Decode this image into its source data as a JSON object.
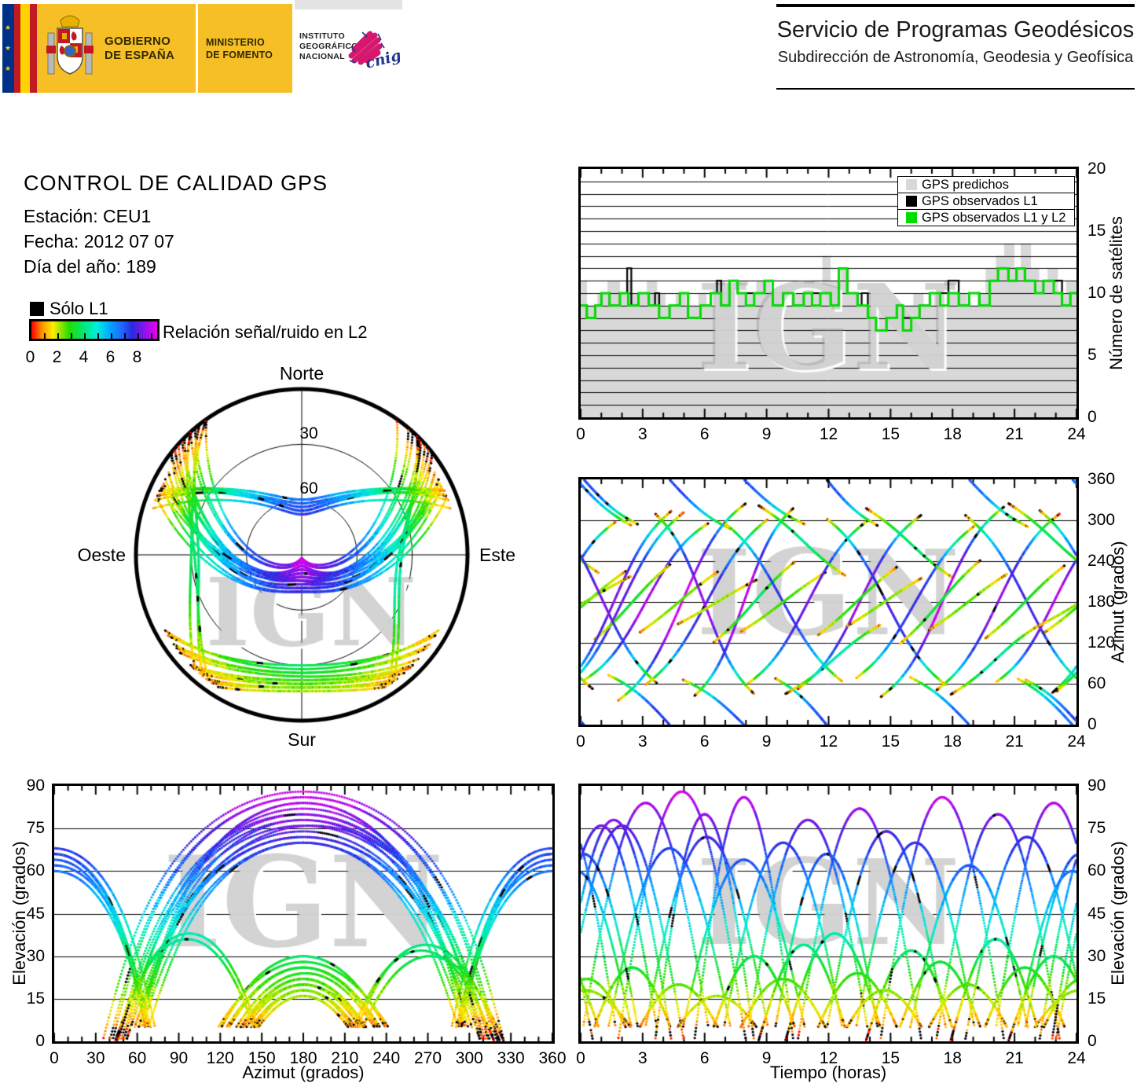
{
  "header": {
    "gobierno_line1": "GOBIERNO",
    "gobierno_line2": "DE ESPAÑA",
    "ministerio_line1": "MINISTERIO",
    "ministerio_line2": "DE FOMENTO",
    "instituto_line1": "INSTITUTO",
    "instituto_line2": "GEOGRÁFICO",
    "instituto_line3": "NACIONAL",
    "cnig_label": "cnig",
    "service_title": "Servicio de Programas Geodésicos",
    "service_subtitle": "Subdirección de Astronomía, Geodesia y Geofísica"
  },
  "info": {
    "title": "CONTROL DE CALIDAD GPS",
    "station": "Estación: CEU1",
    "date": "Fecha: 2012 07 07",
    "day_of_year": "Día del año: 189"
  },
  "snr_legend": {
    "solo_l1_label": "Sólo L1",
    "colorbar_label": "Relación señal/ruido en L2",
    "colorbar_ticks": [
      "0",
      "2",
      "4",
      "6",
      "8"
    ],
    "colorbar_tick_values": [
      0,
      2,
      4,
      6,
      8
    ],
    "colorbar_range": [
      0,
      9.3
    ]
  },
  "skyplot": {
    "north": "Norte",
    "south": "Sur",
    "east": "Este",
    "west": "Oeste",
    "ring_labels": [
      "30",
      "60"
    ],
    "ring_elevations": [
      30,
      60
    ]
  },
  "watermark": {
    "text": "IGN"
  },
  "chart_data": {
    "snr_colormap": {
      "range": [
        0,
        9.3
      ],
      "stops": [
        [
          0.0,
          "#ff0000"
        ],
        [
          0.08,
          "#ff8c00"
        ],
        [
          0.17,
          "#ffee00"
        ],
        [
          0.3,
          "#22dd00"
        ],
        [
          0.42,
          "#00e87a"
        ],
        [
          0.52,
          "#00eedd"
        ],
        [
          0.62,
          "#00aaff"
        ],
        [
          0.72,
          "#1f66ff"
        ],
        [
          0.8,
          "#2a2ae0"
        ],
        [
          0.88,
          "#7718e8"
        ],
        [
          1.0,
          "#ee00ee"
        ]
      ],
      "low_snr_flag_color": "#000000",
      "meaning": "señal/ruido L2; negro = sólo L1"
    },
    "satellites_per_hour": {
      "type": "area",
      "xlabel": "",
      "ylabel": "Número de satélites",
      "xlim": [
        0,
        24
      ],
      "ylim": [
        0,
        20
      ],
      "x_ticks": [
        0,
        3,
        6,
        9,
        12,
        15,
        18,
        21,
        24
      ],
      "y_ticks": [
        0,
        5,
        10,
        15,
        20
      ],
      "grid_step_y": 1,
      "minor_step_x": 1,
      "legend": [
        {
          "label": "GPS predichos",
          "color": "#d8d8d8"
        },
        {
          "label": "GPS observados L1",
          "color": "#000000"
        },
        {
          "label": "GPS observados L1 y L2",
          "color": "#00dd00"
        }
      ],
      "series": {
        "predichos_steps": [
          [
            0,
            11
          ],
          [
            0.3,
            9
          ],
          [
            0.8,
            10
          ],
          [
            1.3,
            11
          ],
          [
            1.9,
            10
          ],
          [
            2.2,
            11
          ],
          [
            2.5,
            10
          ],
          [
            3.2,
            11
          ],
          [
            3.7,
            10
          ],
          [
            4.1,
            9
          ],
          [
            4.6,
            10
          ],
          [
            5.1,
            9
          ],
          [
            5.7,
            10
          ],
          [
            6.1,
            9
          ],
          [
            6.5,
            11
          ],
          [
            7.0,
            10
          ],
          [
            7.5,
            11
          ],
          [
            8.1,
            10
          ],
          [
            8.5,
            11
          ],
          [
            9.2,
            10
          ],
          [
            9.7,
            9
          ],
          [
            10.2,
            10
          ],
          [
            10.8,
            11
          ],
          [
            11.3,
            10
          ],
          [
            11.7,
            13
          ],
          [
            12.1,
            11
          ],
          [
            12.6,
            12
          ],
          [
            13.0,
            10
          ],
          [
            13.5,
            9
          ],
          [
            14.0,
            10
          ],
          [
            14.4,
            9
          ],
          [
            15.0,
            8
          ],
          [
            15.5,
            9
          ],
          [
            16.1,
            10
          ],
          [
            16.6,
            9
          ],
          [
            17.1,
            10
          ],
          [
            17.6,
            11
          ],
          [
            18.2,
            10
          ],
          [
            18.7,
            9
          ],
          [
            19.2,
            10
          ],
          [
            19.6,
            12
          ],
          [
            20.1,
            13
          ],
          [
            20.5,
            14
          ],
          [
            21.0,
            12
          ],
          [
            21.3,
            14
          ],
          [
            21.8,
            12
          ],
          [
            22.2,
            11
          ],
          [
            22.6,
            12
          ],
          [
            23.1,
            10
          ],
          [
            23.5,
            11
          ],
          [
            24,
            11
          ]
        ],
        "observados_l1_steps": [
          [
            0,
            9
          ],
          [
            0.3,
            8
          ],
          [
            0.7,
            9
          ],
          [
            1.0,
            10
          ],
          [
            1.4,
            9
          ],
          [
            1.9,
            10
          ],
          [
            2.25,
            12
          ],
          [
            2.45,
            9
          ],
          [
            2.8,
            10
          ],
          [
            3.3,
            9
          ],
          [
            3.6,
            10
          ],
          [
            3.8,
            8
          ],
          [
            4.3,
            9
          ],
          [
            4.8,
            10
          ],
          [
            5.2,
            8
          ],
          [
            5.8,
            9
          ],
          [
            6.3,
            10
          ],
          [
            6.6,
            11
          ],
          [
            6.8,
            9
          ],
          [
            7.2,
            11
          ],
          [
            7.6,
            10
          ],
          [
            8.0,
            10
          ],
          [
            8.4,
            10
          ],
          [
            8.9,
            11
          ],
          [
            9.3,
            9
          ],
          [
            9.8,
            10
          ],
          [
            10.3,
            9
          ],
          [
            10.8,
            10
          ],
          [
            11.2,
            10
          ],
          [
            11.6,
            10
          ],
          [
            12.1,
            9
          ],
          [
            12.5,
            12
          ],
          [
            12.9,
            10
          ],
          [
            13.4,
            9
          ],
          [
            13.6,
            10
          ],
          [
            13.9,
            8
          ],
          [
            14.3,
            7
          ],
          [
            14.8,
            8
          ],
          [
            15.3,
            9
          ],
          [
            15.6,
            8
          ],
          [
            16.0,
            8
          ],
          [
            16.4,
            9
          ],
          [
            16.9,
            10
          ],
          [
            17.4,
            10
          ],
          [
            17.8,
            11
          ],
          [
            18.3,
            9
          ],
          [
            18.8,
            10
          ],
          [
            19.3,
            9
          ],
          [
            19.8,
            11
          ],
          [
            20.2,
            12
          ],
          [
            20.7,
            11
          ],
          [
            21.1,
            12
          ],
          [
            21.5,
            11
          ],
          [
            22.0,
            10
          ],
          [
            22.4,
            11
          ],
          [
            22.9,
            11
          ],
          [
            23.3,
            9
          ],
          [
            23.7,
            10
          ],
          [
            24,
            10
          ]
        ],
        "observados_l1_l2_steps": [
          [
            0,
            9
          ],
          [
            0.3,
            8
          ],
          [
            0.7,
            9
          ],
          [
            1.0,
            10
          ],
          [
            1.4,
            9
          ],
          [
            1.9,
            10
          ],
          [
            2.3,
            9
          ],
          [
            2.8,
            10
          ],
          [
            3.3,
            9
          ],
          [
            3.8,
            8
          ],
          [
            4.3,
            9
          ],
          [
            4.8,
            10
          ],
          [
            5.2,
            8
          ],
          [
            5.8,
            9
          ],
          [
            6.3,
            10
          ],
          [
            6.8,
            9
          ],
          [
            7.2,
            11
          ],
          [
            7.6,
            10
          ],
          [
            8.0,
            9
          ],
          [
            8.4,
            10
          ],
          [
            8.9,
            11
          ],
          [
            9.3,
            9
          ],
          [
            9.8,
            10
          ],
          [
            10.3,
            9
          ],
          [
            10.8,
            10
          ],
          [
            11.2,
            9
          ],
          [
            11.6,
            10
          ],
          [
            12.1,
            9
          ],
          [
            12.5,
            12
          ],
          [
            12.9,
            10
          ],
          [
            13.4,
            9
          ],
          [
            13.9,
            8
          ],
          [
            14.3,
            7
          ],
          [
            14.8,
            8
          ],
          [
            15.3,
            9
          ],
          [
            15.6,
            7
          ],
          [
            16.0,
            8
          ],
          [
            16.4,
            9
          ],
          [
            16.9,
            10
          ],
          [
            17.4,
            9
          ],
          [
            17.8,
            10
          ],
          [
            18.3,
            9
          ],
          [
            18.8,
            10
          ],
          [
            19.3,
            9
          ],
          [
            19.8,
            11
          ],
          [
            20.2,
            12
          ],
          [
            20.7,
            11
          ],
          [
            21.1,
            12
          ],
          [
            21.5,
            11
          ],
          [
            22.0,
            10
          ],
          [
            22.4,
            11
          ],
          [
            22.9,
            10
          ],
          [
            23.3,
            9
          ],
          [
            23.7,
            10
          ],
          [
            24,
            10
          ]
        ]
      }
    },
    "azimuth_vs_time": {
      "type": "scatter",
      "xlabel": "",
      "ylabel": "Azimut (grados)",
      "xlim": [
        0,
        24
      ],
      "ylim": [
        0,
        360
      ],
      "x_ticks": [
        0,
        3,
        6,
        9,
        12,
        15,
        18,
        21,
        24
      ],
      "y_ticks": [
        0,
        60,
        120,
        180,
        240,
        300,
        360
      ],
      "grid_step_y": 60,
      "minor_step_x": 1,
      "source": "satellite_passes"
    },
    "elevation_vs_azimuth": {
      "type": "scatter",
      "xlabel": "Azimut (grados)",
      "ylabel": "Elevación (grados)",
      "xlim": [
        0,
        360
      ],
      "ylim": [
        0,
        90
      ],
      "x_ticks": [
        0,
        30,
        60,
        90,
        120,
        150,
        180,
        210,
        240,
        270,
        300,
        330,
        360
      ],
      "y_ticks": [
        0,
        15,
        30,
        45,
        60,
        75,
        90
      ],
      "grid_step_y": 15,
      "minor_step_x": 10,
      "source": "satellite_passes"
    },
    "elevation_vs_time": {
      "type": "scatter",
      "xlabel": "Tiempo (horas)",
      "ylabel": "Elevación (grados)",
      "xlim": [
        0,
        24
      ],
      "ylim": [
        0,
        90
      ],
      "x_ticks": [
        0,
        3,
        6,
        9,
        12,
        15,
        18,
        21,
        24
      ],
      "y_ticks": [
        0,
        15,
        30,
        45,
        60,
        75,
        90
      ],
      "grid_step_y": 15,
      "minor_step_x": 1,
      "source": "satellite_passes"
    },
    "skyplot_tracks": {
      "type": "polar_tracks",
      "rings_elevation": [
        30,
        60
      ],
      "outer_elevation": 0,
      "source": "satellite_passes"
    },
    "satellite_passes": {
      "format": [
        "t_start_h",
        "t_end_h",
        "az_rise_deg",
        "az_rotation_deg",
        "el_max_deg"
      ],
      "passes": [
        [
          -1.0,
          5.0,
          48,
          264,
          76
        ],
        [
          0.0,
          6.3,
          62,
          236,
          84
        ],
        [
          0.4,
          4.6,
          118,
          124,
          26
        ],
        [
          1.2,
          7.4,
          75,
          -150,
          68
        ],
        [
          1.8,
          8.0,
          35,
          290,
          88
        ],
        [
          2.5,
          7.0,
          128,
          104,
          20
        ],
        [
          3.0,
          9.2,
          55,
          250,
          72
        ],
        [
          3.6,
          8.4,
          310,
          -265,
          80
        ],
        [
          4.2,
          9.0,
          140,
          80,
          16
        ],
        [
          4.8,
          11.0,
          68,
          -136,
          64
        ],
        [
          5.5,
          10.3,
          42,
          276,
          86
        ],
        [
          6.2,
          10.6,
          115,
          130,
          30
        ],
        [
          6.8,
          12.8,
          300,
          -240,
          70
        ],
        [
          7.4,
          12.2,
          130,
          100,
          22
        ],
        [
          8.0,
          14.0,
          58,
          244,
          78
        ],
        [
          8.6,
          13.0,
          322,
          -107,
          34
        ],
        [
          9.3,
          14.5,
          70,
          -140,
          66
        ],
        [
          9.9,
          14.7,
          45,
          105,
          38
        ],
        [
          10.5,
          16.5,
          52,
          256,
          82
        ],
        [
          11.2,
          15.6,
          125,
          113,
          24
        ],
        [
          11.8,
          17.8,
          305,
          -250,
          74
        ],
        [
          12.5,
          16.9,
          138,
          84,
          18
        ],
        [
          13.2,
          19.2,
          65,
          230,
          70
        ],
        [
          13.8,
          18.2,
          318,
          -106,
          32
        ],
        [
          14.5,
          20.5,
          40,
          280,
          86
        ],
        [
          15.2,
          19.6,
          112,
          136,
          28
        ],
        [
          15.8,
          21.8,
          72,
          -144,
          62
        ],
        [
          16.5,
          21.0,
          132,
          96,
          20
        ],
        [
          17.2,
          23.2,
          50,
          260,
          80
        ],
        [
          17.9,
          22.3,
          44,
          104,
          36
        ],
        [
          18.6,
          24.6,
          308,
          -256,
          72
        ],
        [
          19.3,
          23.7,
          120,
          120,
          26
        ],
        [
          20.0,
          25.8,
          60,
          240,
          84
        ],
        [
          20.7,
          25.1,
          325,
          -107,
          30
        ],
        [
          21.4,
          26.9,
          68,
          -136,
          66
        ],
        [
          22.1,
          26.5,
          128,
          104,
          22
        ],
        [
          22.8,
          28.4,
          46,
          268,
          78
        ],
        [
          -2.5,
          2.9,
          135,
          90,
          18
        ],
        [
          -1.8,
          3.8,
          315,
          -257,
          76
        ],
        [
          -3.0,
          2.6,
          70,
          -140,
          60
        ]
      ]
    }
  }
}
